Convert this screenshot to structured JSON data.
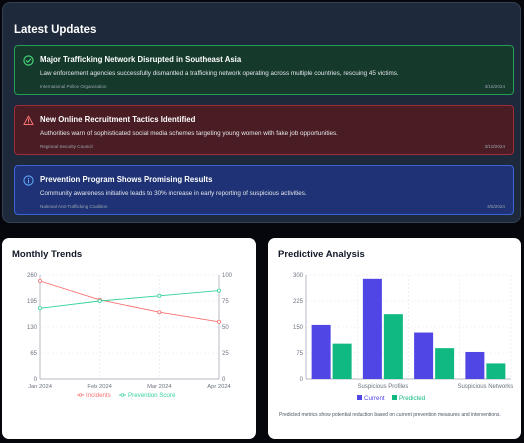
{
  "updates": {
    "title": "Latest Updates",
    "items": [
      {
        "title": "Major Trafficking Network Disrupted in Southeast Asia",
        "body": "Law enforcement agencies successfully dismantled a trafficking network operating across multiple countries, rescuing 45 victims.",
        "source": "International Police Organization",
        "date": "3/15/2024",
        "status": "success",
        "icon": "check-circle-icon"
      },
      {
        "title": "New Online Recruitment Tactics Identified",
        "body": "Authorities warn of sophisticated social media schemes targeting young women with fake job opportunities.",
        "source": "Regional Security Council",
        "date": "3/10/2024",
        "status": "danger",
        "icon": "warning-triangle-icon"
      },
      {
        "title": "Prevention Program Shows Promising Results",
        "body": "Community awareness initiative leads to 30% increase in early reporting of suspicious activities.",
        "source": "National Anti-Trafficking Coalition",
        "date": "3/5/2024",
        "status": "info",
        "icon": "info-circle-icon"
      }
    ]
  },
  "monthly_trends": {
    "title": "Monthly Trends"
  },
  "predictive": {
    "title": "Predictive Analysis",
    "footnote": "Predicted metrics show potential reduction based on current prevention measures and interventions."
  },
  "colors": {
    "incidents": "#f87171",
    "prevention": "#34d399",
    "current": "#4f46e5",
    "predicted": "#10b981"
  },
  "chart_data": [
    {
      "type": "line",
      "title": "Monthly Trends",
      "categories": [
        "Jan 2024",
        "Feb 2024",
        "Mar 2024",
        "Apr 2024"
      ],
      "series": [
        {
          "name": "Incidents",
          "axis": "left",
          "values": [
            245,
            198,
            167,
            143
          ]
        },
        {
          "name": "Prevention Score",
          "axis": "right",
          "values": [
            68,
            75,
            80,
            85
          ]
        }
      ],
      "left_ticks": [
        0,
        65,
        130,
        195,
        260
      ],
      "right_ticks": [
        0,
        25,
        50,
        75,
        100
      ],
      "ylim_left": [
        0,
        260
      ],
      "ylim_right": [
        0,
        100
      ],
      "grid": true,
      "legend": "bottom"
    },
    {
      "type": "bar",
      "title": "Predictive Analysis",
      "categories": [
        "",
        "Suspicious Profiles",
        "",
        "Suspicious Networks"
      ],
      "series": [
        {
          "name": "Current",
          "values": [
            156,
            289,
            134,
            78
          ]
        },
        {
          "name": "Predicted",
          "values": [
            102,
            187,
            89,
            45
          ]
        }
      ],
      "y_ticks": [
        0,
        75,
        150,
        225,
        300
      ],
      "ylim": [
        0,
        300
      ],
      "grid": true,
      "legend": "bottom"
    }
  ]
}
